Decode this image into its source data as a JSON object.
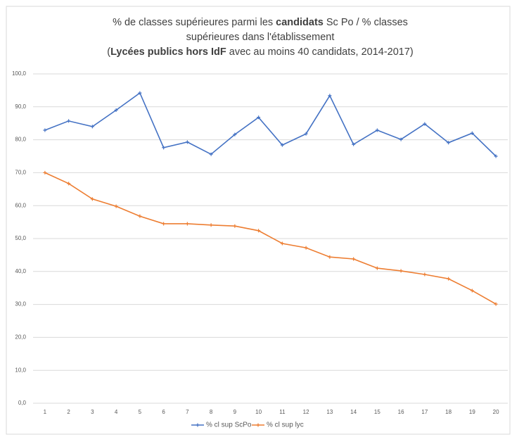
{
  "chart_data": {
    "type": "line",
    "title_lines": [
      [
        {
          "text": "% de classes supérieures parmi les "
        },
        {
          "text": "candidats",
          "bold": true
        },
        {
          "text": " Sc Po / % classes"
        }
      ],
      [
        {
          "text": "supérieures dans l'établissement"
        }
      ],
      [
        {
          "text": "("
        },
        {
          "text": "Lycées publics hors IdF",
          "bold": true
        },
        {
          "text": " avec au moins 40 candidats, 2014-2017)"
        }
      ]
    ],
    "categories": [
      "1",
      "2",
      "3",
      "4",
      "5",
      "6",
      "7",
      "8",
      "9",
      "10",
      "11",
      "12",
      "13",
      "14",
      "15",
      "16",
      "17",
      "18",
      "19",
      "20"
    ],
    "series": [
      {
        "name": "% cl sup ScPo",
        "color": "#4472c4",
        "values": [
          82.9,
          85.7,
          84,
          89,
          94.2,
          77.6,
          79.3,
          75.6,
          81.6,
          86.8,
          78.4,
          81.8,
          93.4,
          78.6,
          82.9,
          80.1,
          84.8,
          79.1,
          82,
          75
        ]
      },
      {
        "name": "% cl sup lyc",
        "color": "#ed7d31",
        "values": [
          70,
          66.7,
          62,
          59.8,
          56.8,
          54.5,
          54.5,
          54.1,
          53.8,
          52.4,
          48.5,
          47.2,
          44.4,
          43.8,
          41,
          40.2,
          39.1,
          37.8,
          34.2,
          30.1
        ]
      }
    ],
    "ylim": [
      0,
      100
    ],
    "yticks": [
      {
        "value": 0,
        "label": "0,0"
      },
      {
        "value": 10,
        "label": "10,0"
      },
      {
        "value": 20,
        "label": "20,0"
      },
      {
        "value": 30,
        "label": "30,0"
      },
      {
        "value": 40,
        "label": "40,0"
      },
      {
        "value": 50,
        "label": "50,0"
      },
      {
        "value": 60,
        "label": "60,0"
      },
      {
        "value": 70,
        "label": "70,0"
      },
      {
        "value": 80,
        "label": "80,0"
      },
      {
        "value": 90,
        "label": "90,0"
      },
      {
        "value": 100,
        "label": "100,0"
      }
    ],
    "grid": true,
    "legend": "bottom"
  }
}
